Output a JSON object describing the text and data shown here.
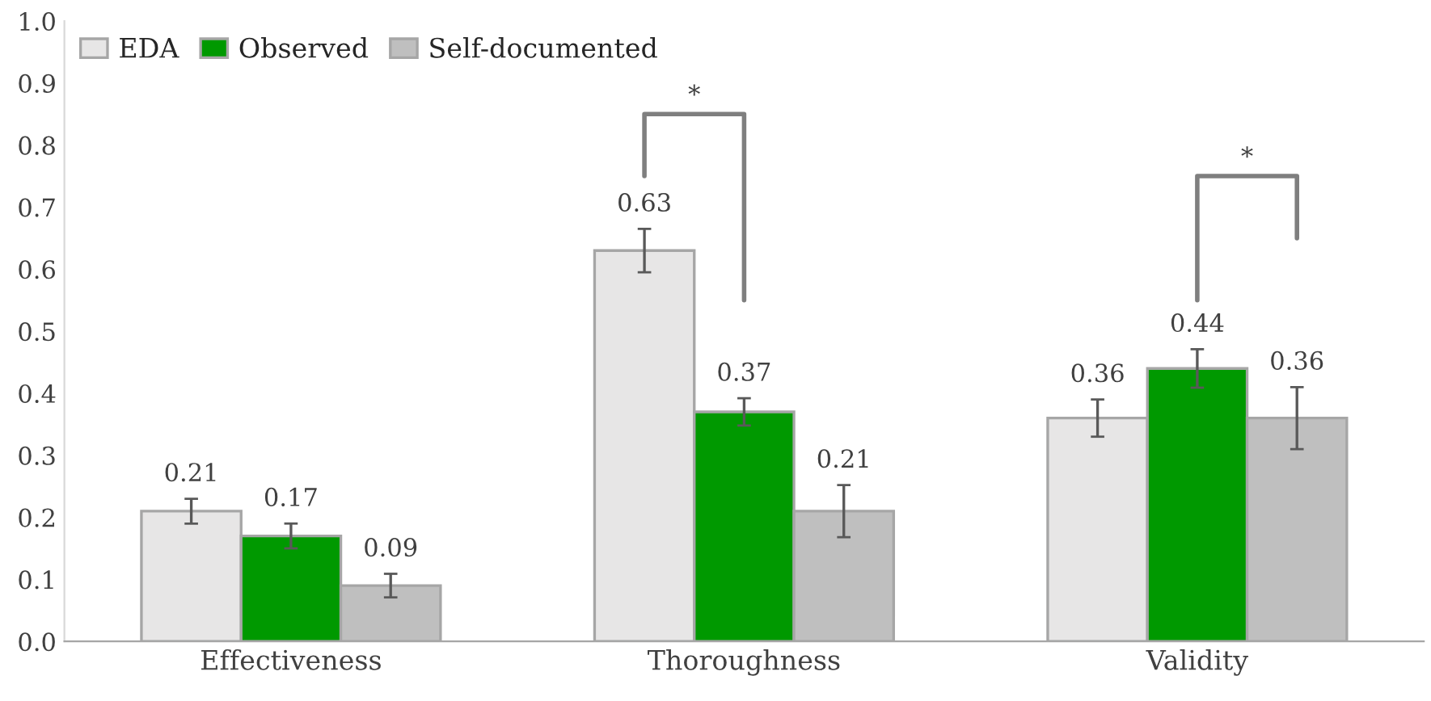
{
  "chart_data": {
    "type": "bar",
    "categories": [
      "Effectiveness",
      "Thoroughness",
      "Validity"
    ],
    "series": [
      {
        "name": "EDA",
        "color": "#e7e6e6",
        "values": [
          0.21,
          0.63,
          0.36
        ],
        "errors": [
          0.02,
          0.035,
          0.03
        ]
      },
      {
        "name": "Observed",
        "color": "#009900",
        "values": [
          0.17,
          0.37,
          0.44
        ],
        "errors": [
          0.02,
          0.022,
          0.031
        ]
      },
      {
        "name": "Self-documented",
        "color": "#bfbfbf",
        "values": [
          0.09,
          0.21,
          0.36
        ],
        "errors": [
          0.019,
          0.042,
          0.05
        ]
      }
    ],
    "ylim": [
      0,
      1.0
    ],
    "yticks": [
      {
        "value": 0,
        "label": "0.0"
      },
      0.1,
      0.2,
      0.3,
      0.4,
      0.5,
      0.6,
      0.7,
      0.8,
      0.9,
      {
        "value": 1.0,
        "label": "1.0"
      }
    ],
    "data_labels": true,
    "annotations": [
      "*",
      "*"
    ],
    "legend": "top left",
    "grid": false
  }
}
